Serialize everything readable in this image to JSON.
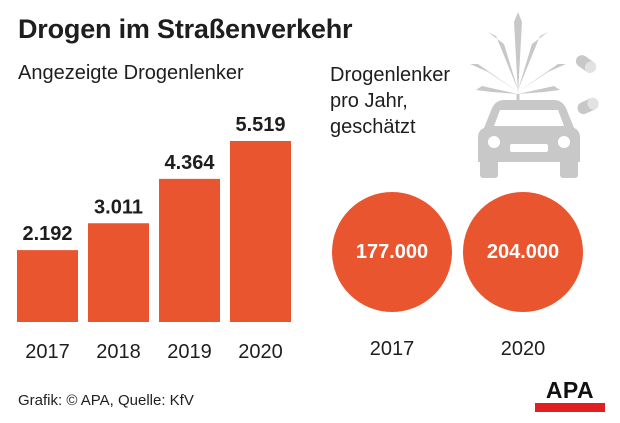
{
  "title": "Drogen im Straßenverkehr",
  "left_subtitle": "Angezeigte Drogenlenker",
  "right_subtitle": [
    "Drogenlenker",
    "pro Jahr,",
    "geschätzt"
  ],
  "source": "Grafik: © APA, Quelle: KfV",
  "logo_text": "APA",
  "colors": {
    "accent": "#e8552f",
    "text": "#1e1e1e",
    "illustration": "#c8c8c8",
    "logo_bar": "#e02020"
  },
  "icons": [
    "cannabis-leaf-icon",
    "pill-icon",
    "car-icon"
  ],
  "chart_data": [
    {
      "type": "bar",
      "title": "Angezeigte Drogenlenker",
      "categories": [
        "2017",
        "2018",
        "2019",
        "2020"
      ],
      "values": [
        2192,
        3011,
        4364,
        5519
      ],
      "value_labels": [
        "2.192",
        "3.011",
        "4.364",
        "5.519"
      ],
      "grid": false
    },
    {
      "type": "bubble",
      "title": "Drogenlenker pro Jahr, geschätzt",
      "categories": [
        "2017",
        "2020"
      ],
      "values": [
        177000,
        204000
      ],
      "value_labels": [
        "177.000",
        "204.000"
      ]
    }
  ]
}
